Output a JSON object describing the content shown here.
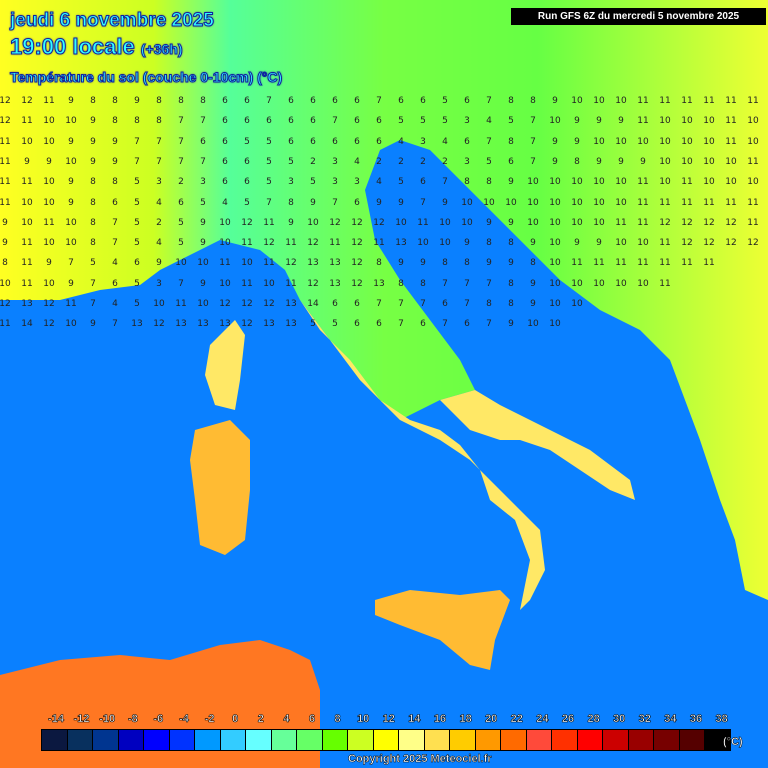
{
  "header": {
    "date": "jeudi 6 novembre 2025",
    "time": "19:00 locale",
    "lead": "(+36h)",
    "parameter": "Température du sol (couche 0-10cm) (°C)",
    "run": "Run GFS 6Z du mercredi 5 novembre 2025"
  },
  "colors": {
    "sea": "#0a80ff",
    "title_text": "#33ffff"
  },
  "legend": {
    "unit": "(°C)",
    "labels": [
      "-14",
      "-12",
      "-10",
      "-8",
      "-6",
      "-4",
      "-2",
      "0",
      "2",
      "4",
      "6",
      "8",
      "10",
      "12",
      "14",
      "16",
      "18",
      "20",
      "22",
      "24",
      "26",
      "28",
      "30",
      "32",
      "34",
      "36",
      "38"
    ],
    "colors": [
      "#0b1840",
      "#08305e",
      "#003590",
      "#0000c0",
      "#0000ff",
      "#0033ff",
      "#0099ff",
      "#33ccff",
      "#66ffff",
      "#66ff99",
      "#66ff66",
      "#66ff00",
      "#ccff22",
      "#ffff00",
      "#ffff88",
      "#ffe050",
      "#ffcc00",
      "#ff9900",
      "#ff6a00",
      "#ff4a3a",
      "#ff3000",
      "#ff0000",
      "#cc0000",
      "#990000",
      "#770000",
      "#550000",
      "#000000"
    ]
  },
  "grid_values": [
    "12 12 11 9 8 8 9 8 8 8 6 6 7 6 6 6 6 7 6 6 5 6 7 8 8 9 10 10 10 11 11 11 11 11 11",
    "12 11 10 10 9 8 8 8 7 7 6 6 6 6 6 7 6 6 5 5 5 3 4 5 7 10 9 9 9 11 10 10 10 11 10",
    "11 10 10 9 9 9 7 7 7 6 6 5 5 6 6 6 6 6 4 3 4 6 7 8 7 9 9 10 10 10 10 10 10 11 10",
    "11 9 9 10 9 9 7 7 7 7 6 6 5 5 2 3 4 2 2 2 2 3 5 6 7 9 8 9 9 9 10 10 10 10 11",
    "11 11 10 9 8 8 5 3 2 3 6 6 5 3 5 3 3 4 5 6 7 8 8 9 10 10 10 10 10 11 10 11 10 10 10",
    "11 10 10 9 8 6 5 4 6 5 4 5 7 8 9 7 6 9 9 7 9 10 10 10 10 10 10 10 10 11 11 11 11 11 11",
    "9 10 11 10 8 7 5 2 5 9 10 12 11 9 10 12 12 12 10 11 10 10 9 9 10 10 10 10 11 11 12 12 12 12 11",
    "9 11 10 10 8 7 5 4 5 9 10 11 12 11 12 11 12 11 13 10 10 9 8 8 9 10 9 9 10 10 11 12 12 12 12",
    "8 11 9 7 5 4 6 9 10 10 11 10 11 12 13 13 12 8 9 9 8 8 9 9 8 10 11 11 11 11 11 11 11",
    "10 11 10 9 7 6 5 3 7 9 10 11 10 11 12 13 12 13 8 8 7 7 7 8 9 10 10 10 10 10 11",
    "12 13 12 11 7 4 5 10 11 10 12 12 12 13 14 6 6 7 7 7 6 7 8 8 9 10 10",
    "11 14 12 10 9 7 13 12 13 13 13 12 13 13 5 5 6 6 7 6 7 6 7 9 10 10"
  ],
  "footer": {
    "copyright": "Copyright 2025 Meteociel.fr"
  }
}
